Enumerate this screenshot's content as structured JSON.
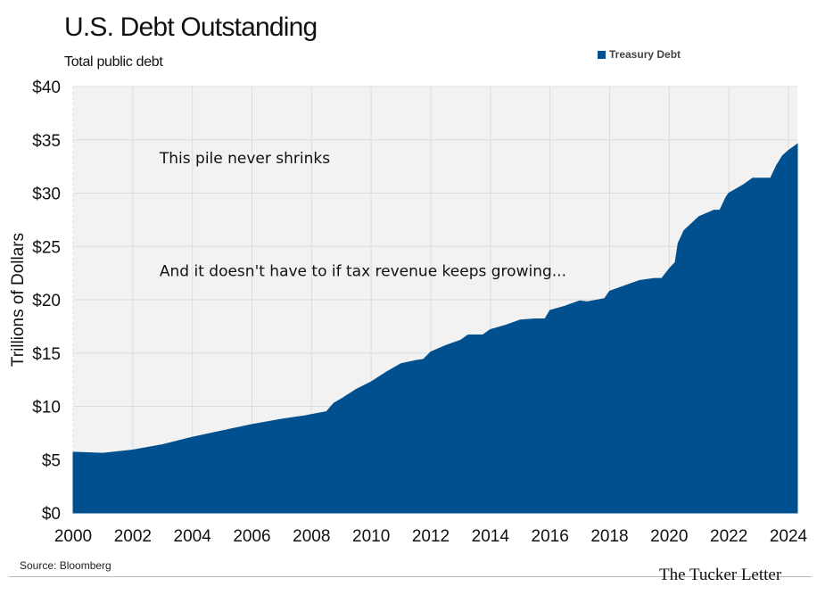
{
  "header": {
    "title": "U.S. Debt Outstanding",
    "subtitle": "Total public debt"
  },
  "legend": {
    "label": "Treasury Debt",
    "color": "#00508f"
  },
  "footer": {
    "source": "Source: Bloomberg",
    "brand": "The Tucker Letter"
  },
  "chart_data": {
    "type": "area",
    "title": "U.S. Debt Outstanding",
    "subtitle": "Total public debt",
    "xlabel": "",
    "ylabel": "Trillions of Dollars",
    "x_ticks": [
      "2000",
      "2002",
      "2004",
      "2006",
      "2008",
      "2010",
      "2012",
      "2014",
      "2016",
      "2018",
      "2020",
      "2022",
      "2024"
    ],
    "y_ticks": [
      "$0",
      "$5",
      "$10",
      "$15",
      "$20",
      "$25",
      "$30",
      "$35",
      "$40"
    ],
    "xlim": [
      2000,
      2024.3
    ],
    "ylim": [
      0,
      40
    ],
    "grid": "vertical and horizontal",
    "legend_position": "top-right",
    "annotations": [
      {
        "text": "This pile never shrinks",
        "x": 2002.9,
        "y": 32.8
      },
      {
        "text": "And it doesn't have to if tax revenue keeps growing...",
        "x": 2002.9,
        "y": 22.2
      }
    ],
    "series": [
      {
        "name": "Treasury Debt",
        "color": "#00508f",
        "x": [
          2000.0,
          2001.0,
          2002.0,
          2003.0,
          2004.0,
          2005.0,
          2006.0,
          2007.0,
          2007.75,
          2008.5,
          2008.75,
          2009.0,
          2009.5,
          2010.0,
          2010.5,
          2011.0,
          2011.5,
          2011.75,
          2012.0,
          2012.5,
          2013.0,
          2013.25,
          2013.75,
          2014.0,
          2014.5,
          2015.0,
          2015.5,
          2015.83,
          2016.0,
          2016.5,
          2017.0,
          2017.25,
          2017.83,
          2018.0,
          2018.5,
          2019.0,
          2019.5,
          2019.75,
          2020.0,
          2020.2,
          2020.3,
          2020.5,
          2021.0,
          2021.5,
          2021.7,
          2021.9,
          2022.0,
          2022.5,
          2022.8,
          2023.0,
          2023.4,
          2023.6,
          2023.8,
          2024.0,
          2024.3
        ],
        "values": [
          5.7,
          5.6,
          5.9,
          6.4,
          7.1,
          7.7,
          8.3,
          8.8,
          9.1,
          9.5,
          10.3,
          10.7,
          11.6,
          12.3,
          13.2,
          14.0,
          14.3,
          14.4,
          15.1,
          15.7,
          16.2,
          16.7,
          16.7,
          17.2,
          17.6,
          18.1,
          18.2,
          18.2,
          19.0,
          19.4,
          19.9,
          19.8,
          20.1,
          20.8,
          21.3,
          21.8,
          22.0,
          22.0,
          22.9,
          23.5,
          25.3,
          26.5,
          27.8,
          28.4,
          28.4,
          29.6,
          30.0,
          30.8,
          31.4,
          31.4,
          31.4,
          32.6,
          33.5,
          34.0,
          34.6
        ]
      }
    ]
  }
}
